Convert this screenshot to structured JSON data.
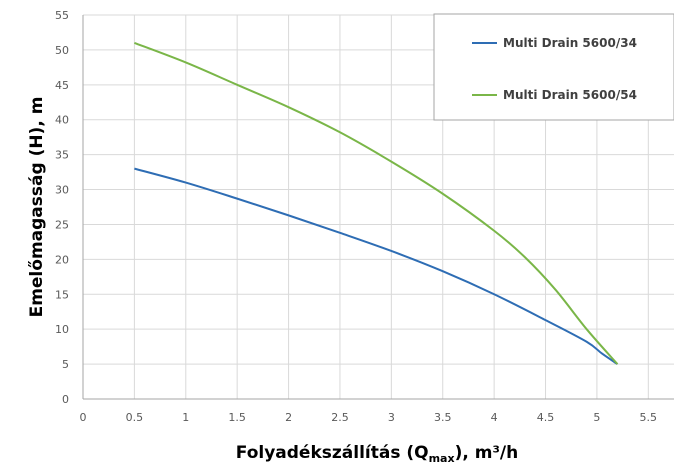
{
  "chart_data": {
    "type": "line",
    "title": "",
    "xlabel": "Folyadékszállítás (Q",
    "xlabel_sub": "max",
    "xlabel_suffix": "), m³/h",
    "ylabel": "Emelőmagasság (H), m",
    "xlim": [
      0,
      5.75
    ],
    "ylim": [
      0,
      55
    ],
    "x_ticks": [
      0,
      0.5,
      1,
      1.5,
      2,
      2.5,
      3,
      3.5,
      4,
      4.5,
      5,
      5.5
    ],
    "x_tick_labels": [
      "0",
      "0.5",
      "1",
      "1.5",
      "2",
      "2.5",
      "3",
      "3.5",
      "4",
      "4.5",
      "5",
      "5.5"
    ],
    "y_ticks": [
      0,
      5,
      10,
      15,
      20,
      25,
      30,
      35,
      40,
      45,
      50,
      55
    ],
    "y_tick_labels": [
      "0",
      "5",
      "10",
      "15",
      "20",
      "25",
      "30",
      "35",
      "40",
      "45",
      "50",
      "55"
    ],
    "grid": true,
    "legend": "top-right",
    "series": [
      {
        "name": "Multi Drain 5600/34",
        "color": "#2e6db4",
        "x": [
          0.5,
          1.0,
          1.5,
          2.0,
          2.5,
          3.0,
          3.5,
          4.0,
          4.5,
          4.9,
          5.05,
          5.2
        ],
        "y": [
          33,
          31,
          28.7,
          26.3,
          23.8,
          21.2,
          18.3,
          15.0,
          11.3,
          8.2,
          6.5,
          5.0
        ]
      },
      {
        "name": "Multi Drain 5600/54",
        "color": "#7ab648",
        "x": [
          0.5,
          1.0,
          1.5,
          2.0,
          2.5,
          3.0,
          3.5,
          4.0,
          4.3,
          4.6,
          4.9,
          5.2
        ],
        "y": [
          51,
          48.2,
          45.0,
          41.8,
          38.2,
          34.0,
          29.4,
          24.1,
          20.3,
          15.6,
          10.0,
          5.0
        ]
      }
    ]
  }
}
